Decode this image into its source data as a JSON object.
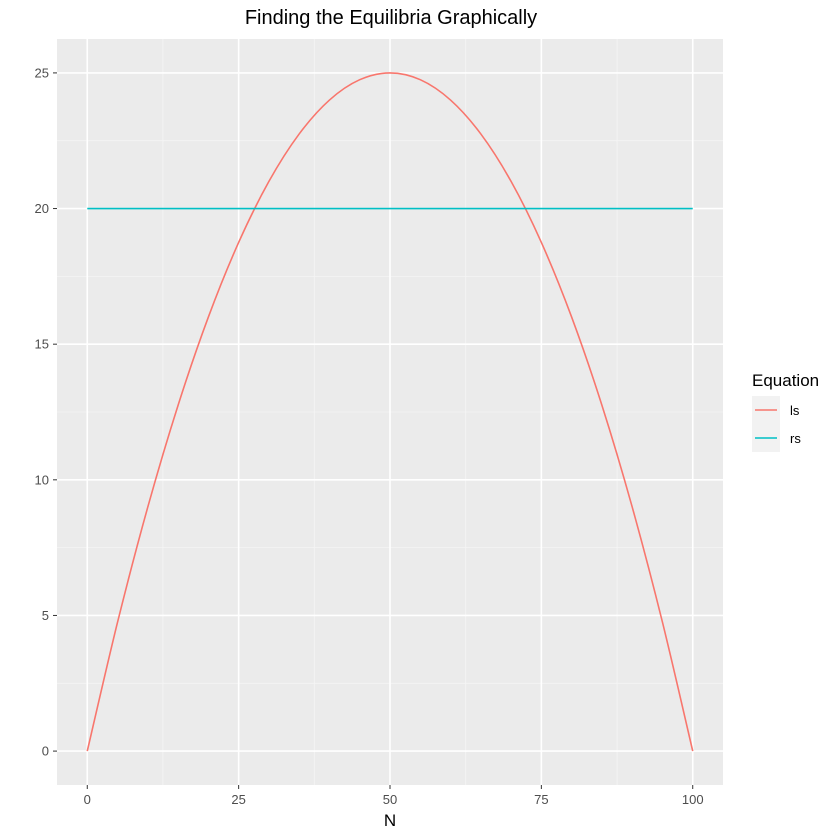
{
  "chart_data": {
    "type": "line",
    "title": "Finding the Equilibria Graphically",
    "xlabel": "N",
    "ylabel": "",
    "xlim": [
      -5,
      105
    ],
    "ylim": [
      -1.25,
      26.25
    ],
    "x_ticks": [
      0,
      25,
      50,
      75,
      100
    ],
    "x_tick_labels": [
      "0",
      "25",
      "50",
      "75",
      "100"
    ],
    "y_ticks": [
      0,
      5,
      10,
      15,
      20,
      25
    ],
    "y_tick_labels": [
      "0",
      "5",
      "10",
      "15",
      "20",
      "25"
    ],
    "grid": true,
    "legend": {
      "title": "Equation",
      "position": "right"
    },
    "series": [
      {
        "name": "ls",
        "color": "#F8766D",
        "x": [
          0,
          5,
          10,
          15,
          20,
          25,
          30,
          35,
          40,
          45,
          50,
          55,
          60,
          65,
          70,
          75,
          80,
          85,
          90,
          95,
          100
        ],
        "y": [
          0,
          4.75,
          9,
          12.75,
          16,
          18.75,
          21,
          22.75,
          24,
          24.75,
          25,
          24.75,
          24,
          22.75,
          21,
          18.75,
          16,
          12.75,
          9,
          4.75,
          0
        ]
      },
      {
        "name": "rs",
        "color": "#00BFC4",
        "x": [
          0,
          100
        ],
        "y": [
          20,
          20
        ]
      }
    ]
  }
}
